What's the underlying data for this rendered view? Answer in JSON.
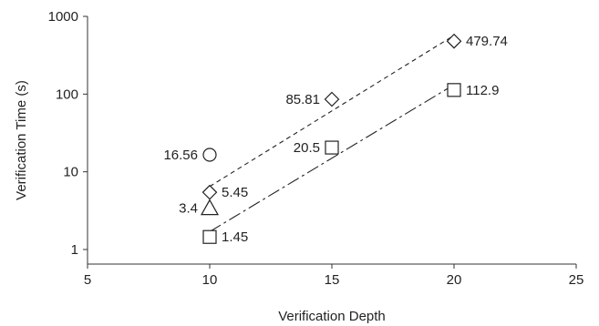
{
  "chart_data": {
    "type": "scatter",
    "title": "",
    "xlabel": "Verification Depth",
    "ylabel": "Verification Time (s)",
    "xlim": [
      5,
      25
    ],
    "ylim": [
      1,
      1000
    ],
    "yscale": "log",
    "x_ticks": [
      "5",
      "10",
      "15",
      "20",
      "25"
    ],
    "y_ticks": [
      "1",
      "10",
      "100",
      "1000"
    ],
    "grid": false,
    "legend": "none",
    "series": [
      {
        "marker": "diamond",
        "points": [
          {
            "x": 10,
            "y": 5.45,
            "label": "5.45",
            "label_side": "right"
          },
          {
            "x": 15,
            "y": 85.81,
            "label": "85.81",
            "label_side": "left"
          },
          {
            "x": 20,
            "y": 479.74,
            "label": "479.74",
            "label_side": "right"
          }
        ],
        "trendline": {
          "style": "dashed",
          "x": [
            10,
            20
          ]
        }
      },
      {
        "marker": "square",
        "points": [
          {
            "x": 10,
            "y": 1.45,
            "label": "1.45",
            "label_side": "right"
          },
          {
            "x": 15,
            "y": 20.5,
            "label": "20.5",
            "label_side": "left"
          },
          {
            "x": 20,
            "y": 112.9,
            "label": "112.9",
            "label_side": "right"
          }
        ],
        "trendline": {
          "style": "dash-dot",
          "x": [
            10,
            20
          ]
        }
      },
      {
        "marker": "circle",
        "points": [
          {
            "x": 10,
            "y": 16.56,
            "label": "16.56",
            "label_side": "left"
          }
        ]
      },
      {
        "marker": "triangle",
        "points": [
          {
            "x": 10,
            "y": 3.4,
            "label": "3.4",
            "label_side": "left"
          }
        ]
      }
    ]
  }
}
